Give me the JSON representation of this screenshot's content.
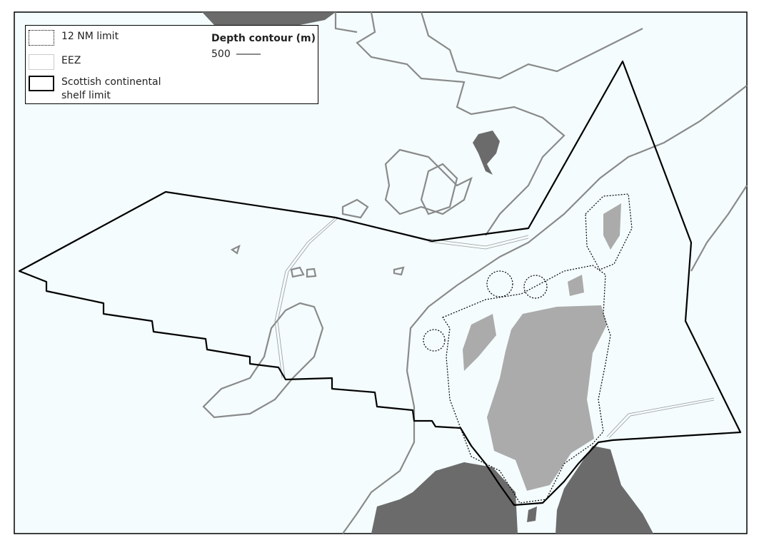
{
  "legend": {
    "items": [
      {
        "label": "12 NM limit"
      },
      {
        "label": "EEZ"
      },
      {
        "label": "Scottish continental shelf limit"
      }
    ],
    "depth_title": "Depth contour (m)",
    "depth_value": "500"
  }
}
